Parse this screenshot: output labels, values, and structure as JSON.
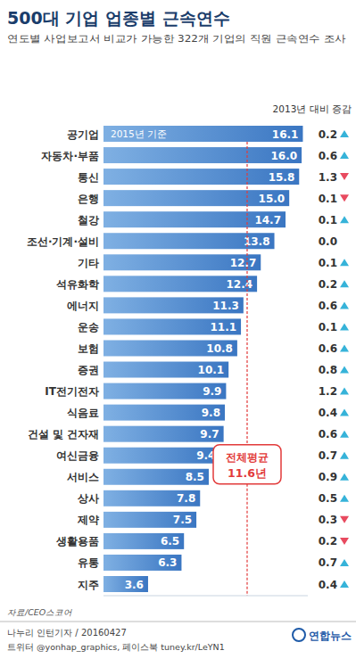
{
  "chart_data": {
    "type": "bar",
    "orientation": "horizontal",
    "title": "500대 기업 업종별 근속연수",
    "subtitle": "연도별 사업보고서 비교가 가능한 322개 기업의 직원 근속연수 조사",
    "annotation": "2015년 기준",
    "categories": [
      "공기업",
      "자동차·부품",
      "통신",
      "은행",
      "철강",
      "조선·기계·설비",
      "기타",
      "석유화학",
      "에너지",
      "운송",
      "보험",
      "증권",
      "IT전기전자",
      "식음료",
      "건설 및 건자재",
      "여신금융",
      "서비스",
      "상사",
      "제약",
      "생활용품",
      "유통",
      "지주"
    ],
    "values": [
      16.1,
      16.0,
      15.8,
      15.0,
      14.7,
      13.8,
      12.7,
      12.4,
      11.3,
      11.1,
      10.8,
      10.1,
      9.9,
      9.8,
      9.7,
      9.4,
      8.5,
      7.8,
      7.5,
      6.5,
      6.3,
      3.6
    ],
    "value_labels": [
      "16.1",
      "16.0",
      "15.8",
      "15.0",
      "14.7",
      "13.8",
      "12.7",
      "12.4",
      "11.3",
      "11.1",
      "10.8",
      "10.1",
      "9.9",
      "9.8",
      "9.7",
      "9.4",
      "8.5",
      "7.8",
      "7.5",
      "6.5",
      "6.3",
      "3.6"
    ],
    "change_header": "2013년 대비 증감",
    "change": [
      0.2,
      0.6,
      -1.3,
      -0.1,
      0.1,
      0.0,
      0.1,
      0.2,
      0.6,
      0.1,
      0.6,
      0.8,
      1.2,
      0.4,
      0.6,
      0.7,
      0.9,
      0.5,
      -0.3,
      -0.2,
      0.7,
      0.4
    ],
    "change_labels": [
      "0.2",
      "0.6",
      "1.3",
      "0.1",
      "0.1",
      "0.0",
      "0.1",
      "0.2",
      "0.6",
      "0.1",
      "0.6",
      "0.8",
      "1.2",
      "0.4",
      "0.6",
      "0.7",
      "0.9",
      "0.5",
      "0.3",
      "0.2",
      "0.7",
      "0.4"
    ],
    "average": 11.6,
    "average_labels": [
      "전체평균",
      "11.6년"
    ],
    "xlim": [
      0,
      16.5
    ],
    "xticks": [],
    "tick_labels": "y",
    "data_labels": true,
    "grid": false,
    "color": "#3a76c2",
    "source": "자료/CEO스코어",
    "credits": [
      "나누리 인턴기자 / 20160427",
      "트위터 @yonhap_graphics, 페이스북 tuney.kr/LeYN1"
    ],
    "logo": "연합뉴스"
  }
}
